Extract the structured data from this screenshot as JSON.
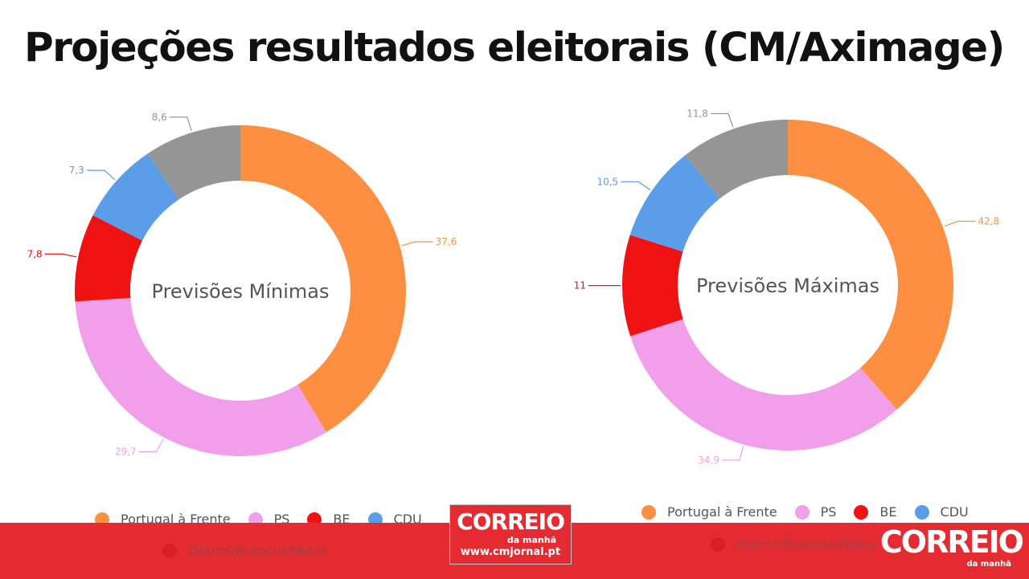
{
  "page": {
    "title": "Projeções resultados eleitorais (CM/Aximage)"
  },
  "colors": {
    "portugal_a_frente": "#fd8f42",
    "ps": "#f29feb",
    "be": "#ef1212",
    "cdu": "#5b9de9",
    "outros": "#959595",
    "brand_red": "#e52b32"
  },
  "legend": [
    {
      "label": "Portugal à Frente",
      "color": "#fd8f42"
    },
    {
      "label": "PS",
      "color": "#f29feb"
    },
    {
      "label": "BE",
      "color": "#ef1212"
    },
    {
      "label": "CDU",
      "color": "#5b9de9"
    },
    {
      "label": "Outros/Brancos/Nulos",
      "color": "#d10e14"
    }
  ],
  "chart_data": [
    {
      "type": "pie",
      "title": "Previsões Mínimas",
      "categories": [
        "Portugal à Frente",
        "PS",
        "BE",
        "CDU",
        "Outros/Brancos/Nulos"
      ],
      "values": [
        37.6,
        29.7,
        7.8,
        7.3,
        8.6
      ],
      "value_labels": [
        "37,6",
        "29,7",
        "7,8",
        "7,3",
        "8,6"
      ],
      "colors": [
        "#fd8f42",
        "#f29feb",
        "#ef1212",
        "#5b9de9",
        "#959595"
      ],
      "legend_position": "bottom"
    },
    {
      "type": "pie",
      "title": "Previsões Máximas",
      "categories": [
        "Portugal à Frente",
        "PS",
        "BE",
        "CDU",
        "Outros/Brancos/Nulos"
      ],
      "values": [
        42.8,
        34.9,
        11,
        10.5,
        11.8
      ],
      "value_labels": [
        "42,8",
        "34,9",
        "11",
        "10,5",
        "11,8"
      ],
      "colors": [
        "#fd8f42",
        "#f29feb",
        "#ef1212",
        "#5b9de9",
        "#959595"
      ],
      "legend_position": "bottom"
    }
  ],
  "logos": {
    "small": {
      "line1": "CORREIO",
      "line2": "da manhã",
      "line3": "www.cmjornal.pt"
    },
    "big": {
      "line1": "CORREIO",
      "line2": "da manhã"
    }
  }
}
